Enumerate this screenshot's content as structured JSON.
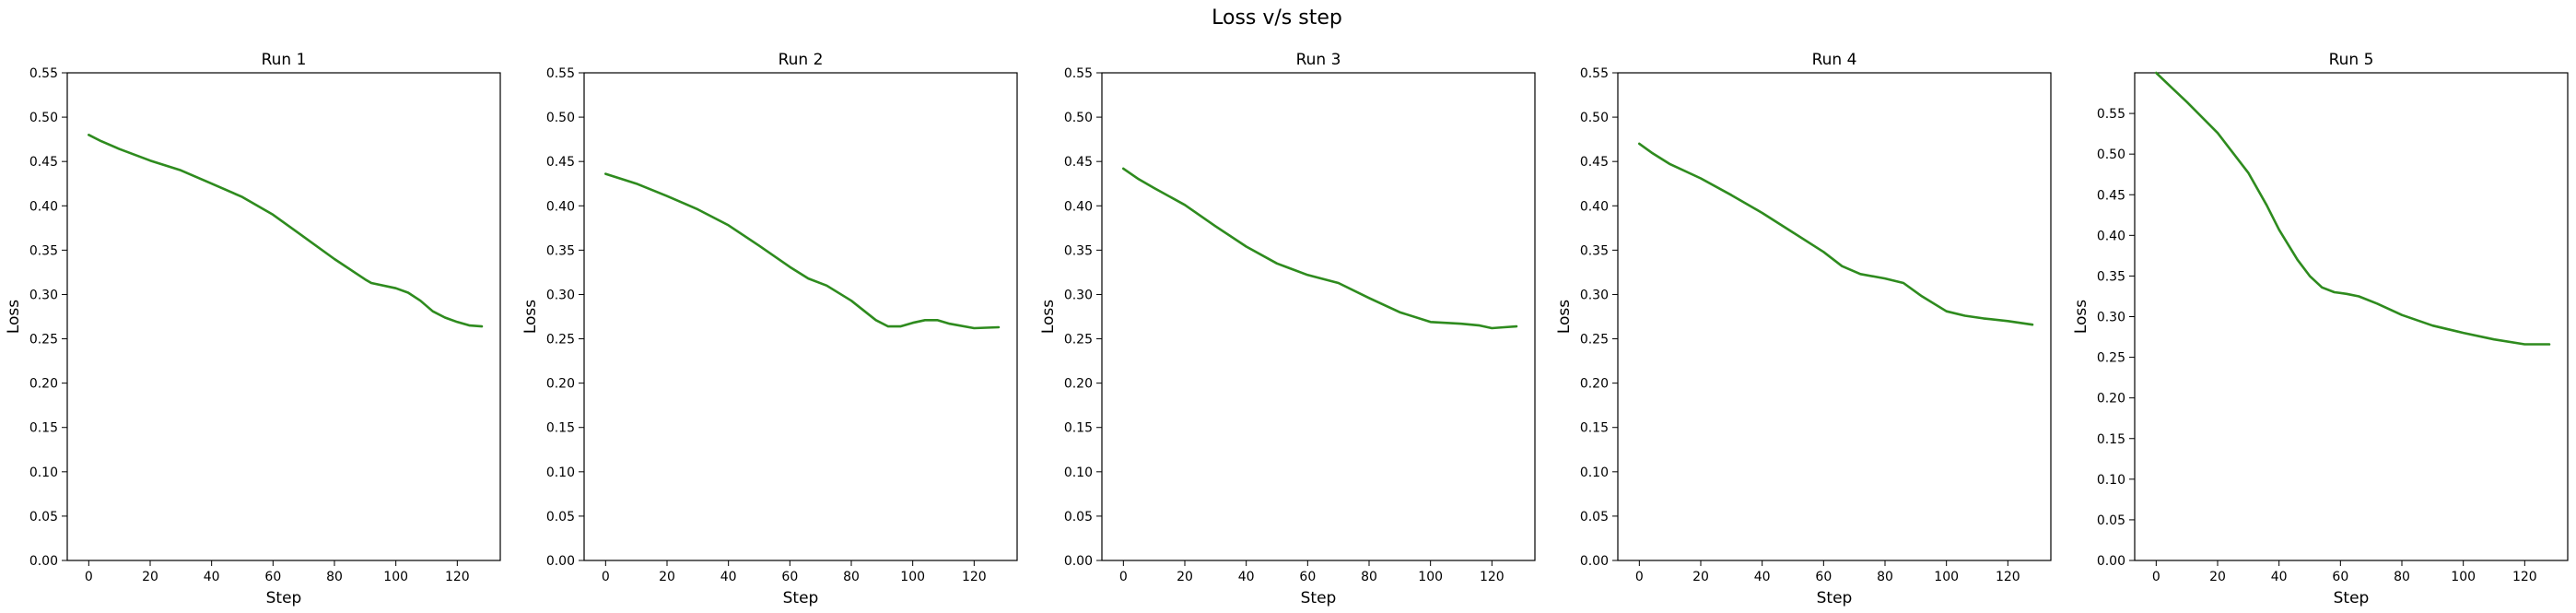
{
  "figure": {
    "title": "Loss v/s step"
  },
  "chart_data": [
    {
      "type": "line",
      "title": "Run 1",
      "xlabel": "Step",
      "ylabel": "Loss",
      "xlim": [
        -7,
        134
      ],
      "ylim": [
        0,
        0.55
      ],
      "xticks": [
        0,
        20,
        40,
        60,
        80,
        100,
        120
      ],
      "yticks": [
        0.0,
        0.05,
        0.1,
        0.15,
        0.2,
        0.25,
        0.3,
        0.35,
        0.4,
        0.45,
        0.5,
        0.55
      ],
      "grid": false,
      "color": "#2e8b1e",
      "series": [
        {
          "x": [
            0,
            4,
            10,
            20,
            30,
            40,
            50,
            60,
            70,
            80,
            90,
            92,
            100,
            104,
            108,
            112,
            116,
            120,
            124,
            128
          ],
          "y": [
            0.48,
            0.473,
            0.464,
            0.451,
            0.44,
            0.425,
            0.41,
            0.39,
            0.365,
            0.34,
            0.317,
            0.313,
            0.307,
            0.302,
            0.293,
            0.281,
            0.274,
            0.269,
            0.265,
            0.264
          ]
        }
      ]
    },
    {
      "type": "line",
      "title": "Run 2",
      "xlabel": "Step",
      "ylabel": "Loss",
      "xlim": [
        -7,
        134
      ],
      "ylim": [
        0,
        0.55
      ],
      "xticks": [
        0,
        20,
        40,
        60,
        80,
        100,
        120
      ],
      "yticks": [
        0.0,
        0.05,
        0.1,
        0.15,
        0.2,
        0.25,
        0.3,
        0.35,
        0.4,
        0.45,
        0.5,
        0.55
      ],
      "grid": false,
      "color": "#2e8b1e",
      "series": [
        {
          "x": [
            0,
            10,
            20,
            30,
            40,
            50,
            60,
            66,
            72,
            80,
            88,
            92,
            96,
            100,
            104,
            108,
            112,
            120,
            128
          ],
          "y": [
            0.436,
            0.425,
            0.411,
            0.396,
            0.378,
            0.355,
            0.331,
            0.318,
            0.31,
            0.293,
            0.271,
            0.264,
            0.264,
            0.268,
            0.271,
            0.271,
            0.267,
            0.262,
            0.263
          ]
        }
      ]
    },
    {
      "type": "line",
      "title": "Run 3",
      "xlabel": "Step",
      "ylabel": "Loss",
      "xlim": [
        -7,
        134
      ],
      "ylim": [
        0,
        0.55
      ],
      "xticks": [
        0,
        20,
        40,
        60,
        80,
        100,
        120
      ],
      "yticks": [
        0.0,
        0.05,
        0.1,
        0.15,
        0.2,
        0.25,
        0.3,
        0.35,
        0.4,
        0.45,
        0.5,
        0.55
      ],
      "grid": false,
      "color": "#2e8b1e",
      "series": [
        {
          "x": [
            0,
            5,
            10,
            20,
            30,
            40,
            50,
            60,
            70,
            80,
            90,
            100,
            110,
            116,
            120,
            124,
            128
          ],
          "y": [
            0.442,
            0.43,
            0.42,
            0.401,
            0.377,
            0.354,
            0.335,
            0.322,
            0.313,
            0.296,
            0.28,
            0.269,
            0.267,
            0.265,
            0.262,
            0.263,
            0.264
          ]
        }
      ]
    },
    {
      "type": "line",
      "title": "Run 4",
      "xlabel": "Step",
      "ylabel": "Loss",
      "xlim": [
        -7,
        134
      ],
      "ylim": [
        0,
        0.55
      ],
      "xticks": [
        0,
        20,
        40,
        60,
        80,
        100,
        120
      ],
      "yticks": [
        0.0,
        0.05,
        0.1,
        0.15,
        0.2,
        0.25,
        0.3,
        0.35,
        0.4,
        0.45,
        0.5,
        0.55
      ],
      "grid": false,
      "color": "#2e8b1e",
      "series": [
        {
          "x": [
            0,
            4,
            10,
            20,
            30,
            40,
            50,
            60,
            66,
            72,
            80,
            86,
            92,
            100,
            106,
            112,
            120,
            128
          ],
          "y": [
            0.47,
            0.46,
            0.447,
            0.431,
            0.412,
            0.392,
            0.37,
            0.348,
            0.332,
            0.323,
            0.318,
            0.313,
            0.298,
            0.281,
            0.276,
            0.273,
            0.27,
            0.266
          ]
        }
      ]
    },
    {
      "type": "line",
      "title": "Run 5",
      "xlabel": "Step",
      "ylabel": "Loss",
      "xlim": [
        -7,
        134
      ],
      "ylim": [
        0,
        0.6
      ],
      "xticks": [
        0,
        20,
        40,
        60,
        80,
        100,
        120
      ],
      "yticks": [
        0.0,
        0.05,
        0.1,
        0.15,
        0.2,
        0.25,
        0.3,
        0.35,
        0.4,
        0.45,
        0.5,
        0.55
      ],
      "grid": false,
      "color": "#2e8b1e",
      "series": [
        {
          "x": [
            0,
            5,
            10,
            20,
            30,
            36,
            40,
            46,
            50,
            54,
            58,
            62,
            66,
            72,
            80,
            90,
            100,
            110,
            120,
            128
          ],
          "y": [
            0.6,
            0.582,
            0.564,
            0.526,
            0.477,
            0.437,
            0.407,
            0.37,
            0.35,
            0.336,
            0.33,
            0.328,
            0.325,
            0.316,
            0.302,
            0.289,
            0.28,
            0.272,
            0.266,
            0.266
          ]
        }
      ]
    }
  ]
}
